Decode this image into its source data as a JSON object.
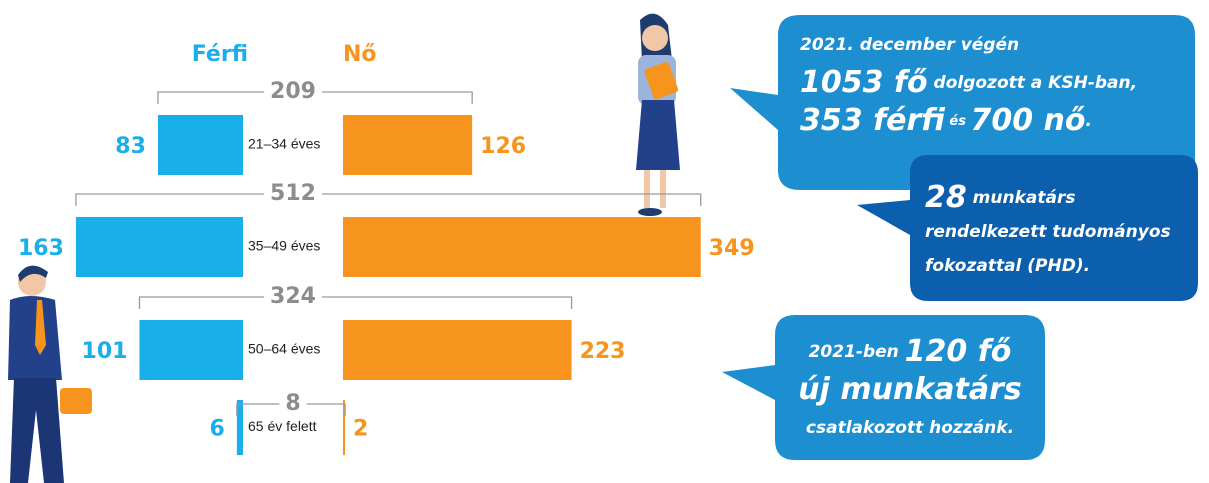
{
  "chart_data": {
    "type": "butterfly",
    "categories": [
      "21–34 éves",
      "35–49 éves",
      "50–64 éves",
      "65 év felett"
    ],
    "series": [
      {
        "name": "Férfi",
        "color": "#1aaeea",
        "values": [
          83,
          163,
          101,
          6
        ]
      },
      {
        "name": "Nő",
        "color": "#f7941d",
        "values": [
          126,
          349,
          223,
          2
        ]
      }
    ],
    "totals": [
      209,
      512,
      324,
      8
    ],
    "annotations": [
      {
        "lines": [
          [
            {
              "text": "2021. december végén",
              "style": "m"
            }
          ],
          [
            {
              "text": "1053 fő",
              "style": "l"
            },
            {
              "text": " dolgozott a KSH-ban,",
              "style": "m"
            }
          ],
          [
            {
              "text": "353 férfi",
              "style": "l"
            },
            {
              "text": " és ",
              "style": "s"
            },
            {
              "text": "700 nő",
              "style": "l"
            },
            {
              "text": ".",
              "style": "m"
            }
          ]
        ]
      },
      {
        "lines": [
          [
            {
              "text": "28",
              "style": "l"
            },
            {
              "text": " munkatárs",
              "style": "m"
            }
          ],
          [
            {
              "text": "rendelkezett tudományos",
              "style": "m"
            }
          ],
          [
            {
              "text": "fokozattal (PHD).",
              "style": "m"
            }
          ]
        ]
      },
      {
        "lines": [
          [
            {
              "text": "2021-ben ",
              "style": "m"
            },
            {
              "text": "120 fő",
              "style": "l"
            }
          ],
          [
            {
              "text": "új munkatárs",
              "style": "l"
            }
          ],
          [
            {
              "text": "csatlakozott hozzánk.",
              "style": "m"
            }
          ]
        ]
      }
    ]
  }
}
